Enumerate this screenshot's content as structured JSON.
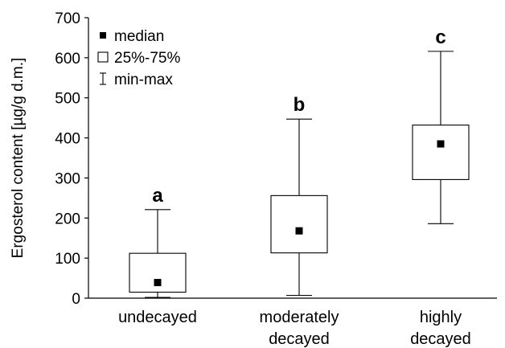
{
  "chart_data": {
    "type": "boxplot",
    "ylabel": "Ergosterol content [µg/g d.m.]",
    "xlabel": "",
    "ylim": [
      0,
      700
    ],
    "yticks": [
      0,
      100,
      200,
      300,
      400,
      500,
      600,
      700
    ],
    "grid": false,
    "legend_position": "top-left",
    "legend": [
      {
        "symbol": "filled-square",
        "label": "median"
      },
      {
        "symbol": "open-square",
        "label": "25%-75%"
      },
      {
        "symbol": "whisker",
        "label": "min-max"
      }
    ],
    "categories": [
      {
        "label_lines": [
          "undecayed"
        ],
        "letter": "a",
        "min": 2,
        "q1": 15,
        "median": 39,
        "q3": 112,
        "max": 221
      },
      {
        "label_lines": [
          "moderately",
          "decayed"
        ],
        "letter": "b",
        "min": 7,
        "q1": 113,
        "median": 168,
        "q3": 256,
        "max": 447
      },
      {
        "label_lines": [
          "highly",
          "decayed"
        ],
        "letter": "c",
        "min": 186,
        "q1": 296,
        "median": 385,
        "q3": 432,
        "max": 616
      }
    ]
  }
}
